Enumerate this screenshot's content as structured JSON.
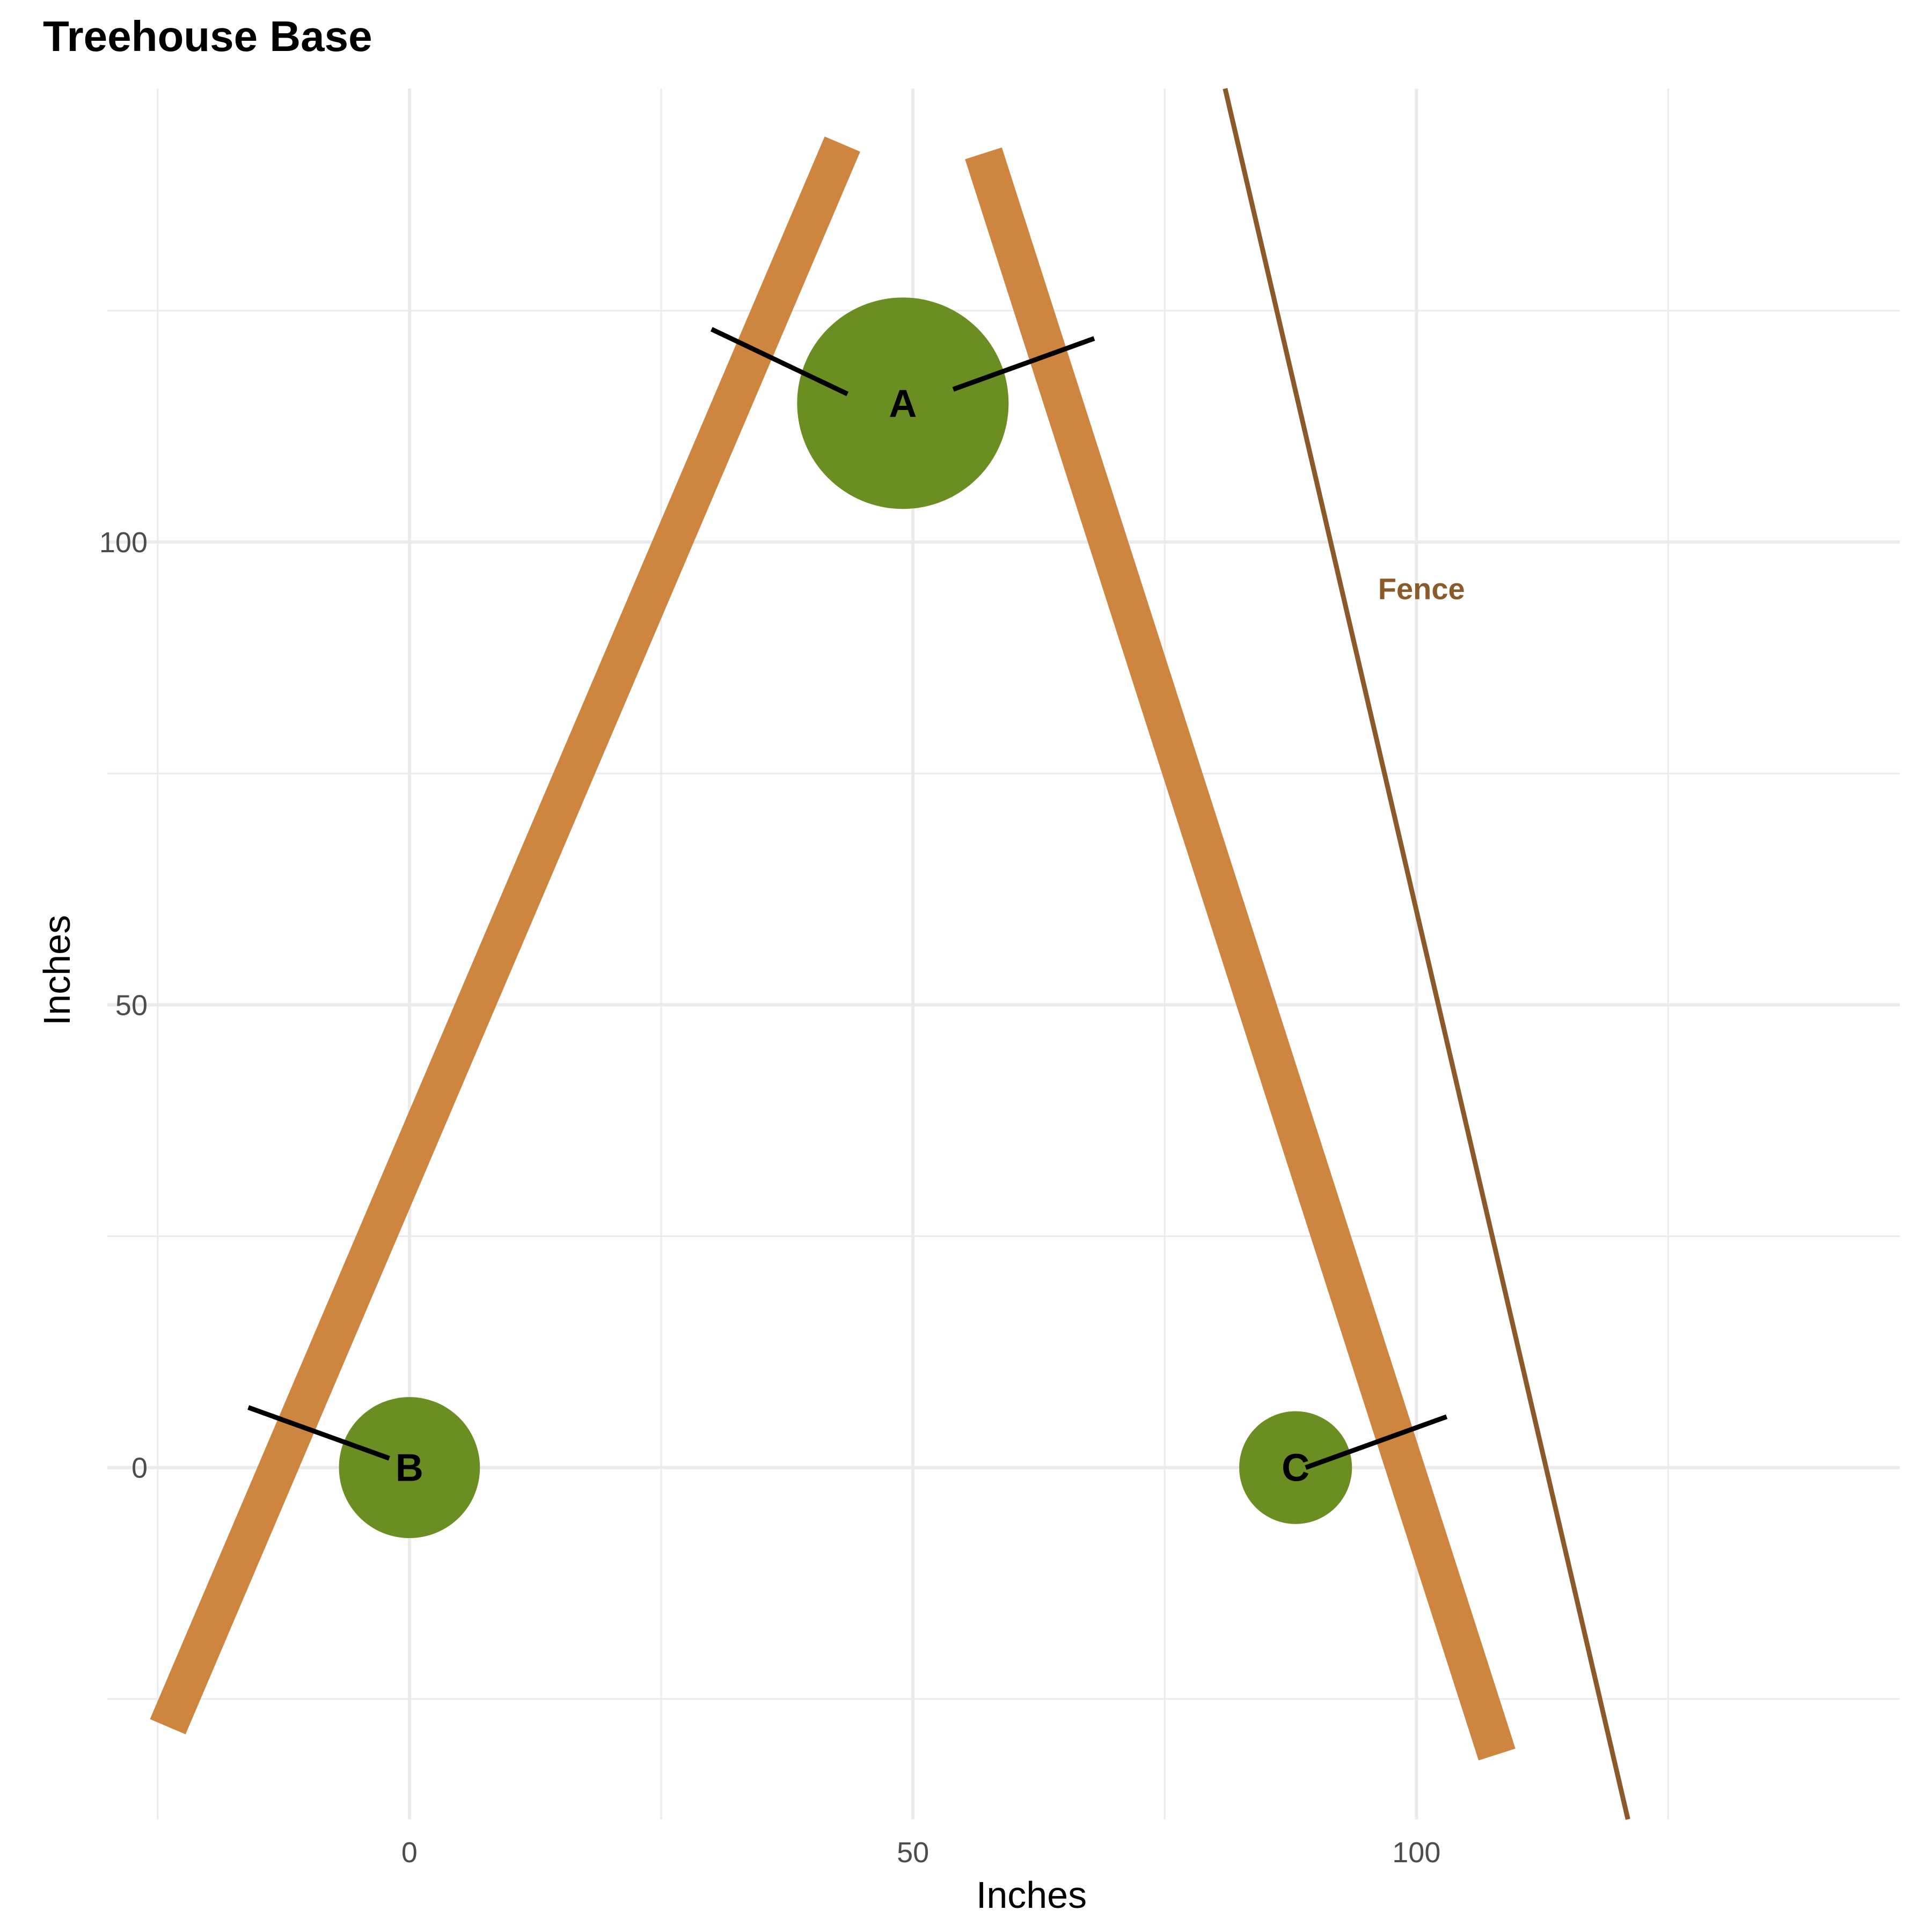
{
  "title": "Treehouse Base",
  "xlabel": "Inches",
  "ylabel": "Inches",
  "x_range": [
    -30,
    148
  ],
  "y_range": [
    -38,
    149
  ],
  "x_major_ticks": [
    0,
    50,
    100
  ],
  "x_minor_gridlines": [
    -25,
    25,
    75,
    125
  ],
  "y_major_ticks": [
    0,
    50,
    100
  ],
  "y_minor_gridlines": [
    -25,
    25,
    75,
    125
  ],
  "tick_labels": {
    "x": [
      "0",
      "50",
      "100"
    ],
    "y": [
      "0",
      "50",
      "100"
    ]
  },
  "colors": {
    "beam": "#CD853F",
    "tree": "#6B8E23",
    "fence": "#8B5A2B",
    "bracket": "#000000",
    "grid": "#EBEBEB"
  },
  "beams": [
    {
      "from": [
        -24,
        -28
      ],
      "to": [
        43,
        143
      ]
    },
    {
      "from": [
        57,
        142
      ],
      "to": [
        108,
        -31
      ]
    }
  ],
  "brackets": [
    {
      "from": [
        30,
        123
      ],
      "to": [
        43.5,
        116
      ]
    },
    {
      "from": [
        54,
        116.5
      ],
      "to": [
        68,
        122
      ]
    },
    {
      "from": [
        -16,
        6.5
      ],
      "to": [
        -2,
        1
      ]
    },
    {
      "from": [
        89,
        0
      ],
      "to": [
        103,
        5.5
      ]
    }
  ],
  "trees": [
    {
      "label": "A",
      "x": 49,
      "y": 115,
      "r": 10.5
    },
    {
      "label": "B",
      "x": 0,
      "y": 0,
      "r": 7
    },
    {
      "label": "C",
      "x": 88,
      "y": 0,
      "r": 5.6
    }
  ],
  "fence": {
    "label": "Fence",
    "from": [
      81,
      149
    ],
    "to": [
      121,
      -38
    ],
    "label_at": [
      100.5,
      95
    ]
  }
}
